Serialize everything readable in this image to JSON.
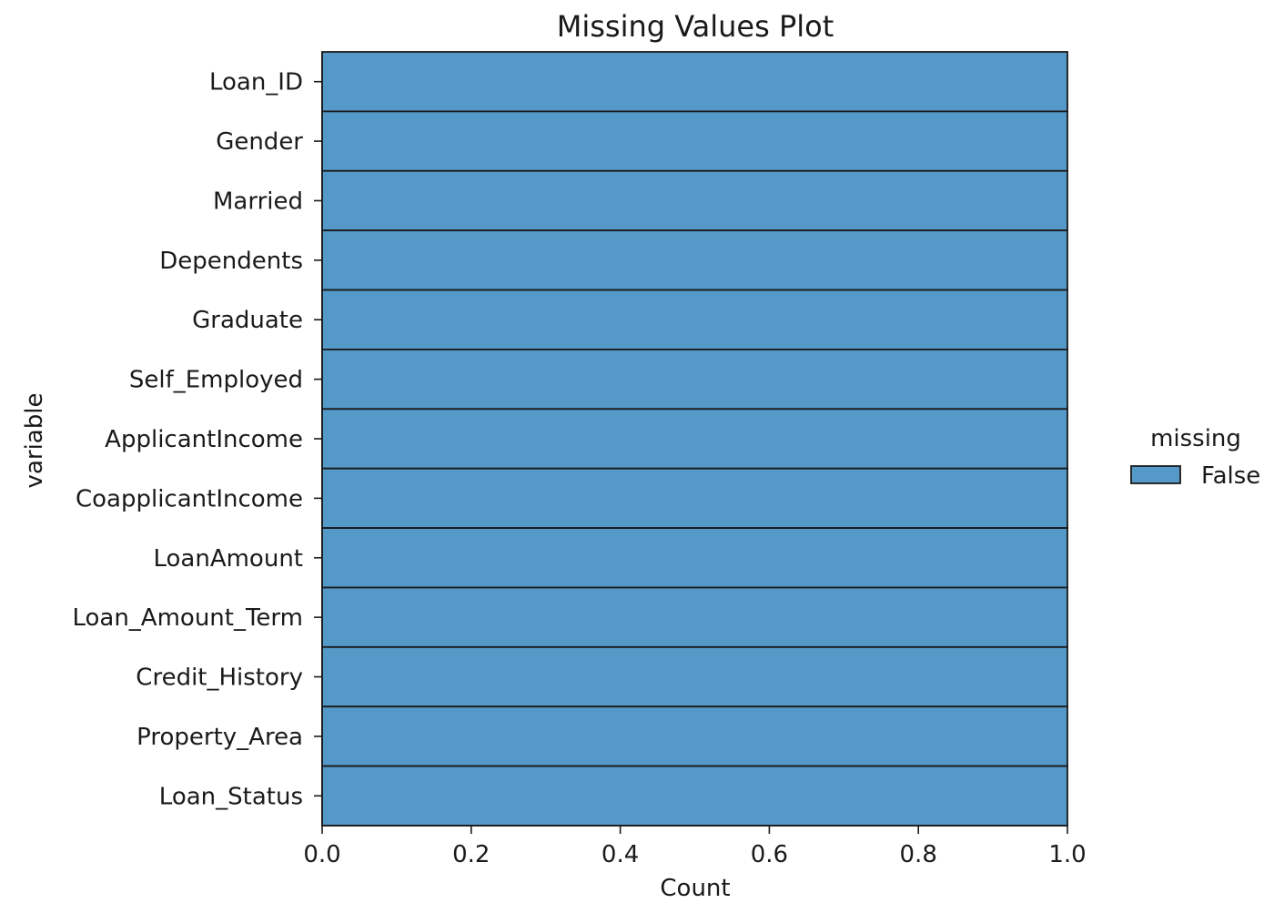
{
  "chart_data": {
    "type": "bar",
    "orientation": "horizontal",
    "stacked": true,
    "title": "Missing Values Plot",
    "xlabel": "Count",
    "ylabel": "variable",
    "categories": [
      "Loan_ID",
      "Gender",
      "Married",
      "Dependents",
      "Graduate",
      "Self_Employed",
      "ApplicantIncome",
      "CoapplicantIncome",
      "LoanAmount",
      "Loan_Amount_Term",
      "Credit_History",
      "Property_Area",
      "Loan_Status"
    ],
    "series": [
      {
        "name": "False",
        "color": "#5499c7",
        "values": [
          1,
          1,
          1,
          1,
          1,
          1,
          1,
          1,
          1,
          1,
          1,
          1,
          1
        ]
      }
    ],
    "xlim": [
      0,
      1
    ],
    "xticks": [
      "0.0",
      "0.2",
      "0.4",
      "0.6",
      "0.8",
      "1.0"
    ],
    "grid": false,
    "legend": {
      "title": "missing",
      "placement": "right",
      "entries": [
        "False"
      ]
    },
    "bar_edge_color": "#1a1a1a"
  }
}
